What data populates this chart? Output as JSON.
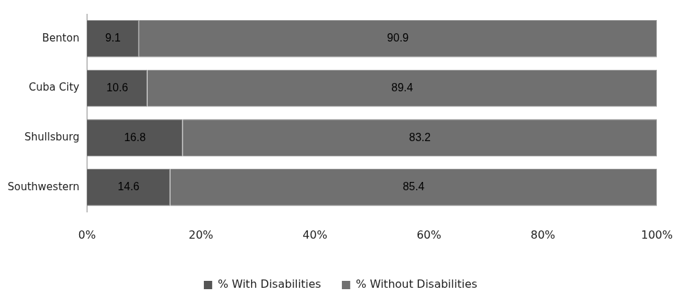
{
  "chart_data": {
    "type": "bar",
    "orientation": "horizontal",
    "stacked": true,
    "categories": [
      "Benton",
      "Cuba City",
      "Shullsburg",
      "Southwestern"
    ],
    "series": [
      {
        "name": "% With Disabilities",
        "color": "#555555",
        "values": [
          9.1,
          10.6,
          16.8,
          14.6
        ]
      },
      {
        "name": "% Without Disabilities",
        "color": "#707070",
        "values": [
          90.9,
          89.4,
          83.2,
          85.4
        ]
      }
    ],
    "xlim": [
      0,
      100
    ],
    "xticks": [
      {
        "value": 0,
        "label": "0%"
      },
      {
        "value": 20,
        "label": "20%"
      },
      {
        "value": 40,
        "label": "40%"
      },
      {
        "value": 60,
        "label": "60%"
      },
      {
        "value": 80,
        "label": "80%"
      },
      {
        "value": 100,
        "label": "100%"
      }
    ],
    "grid": false,
    "legend": "bottom",
    "data_labels": true
  }
}
